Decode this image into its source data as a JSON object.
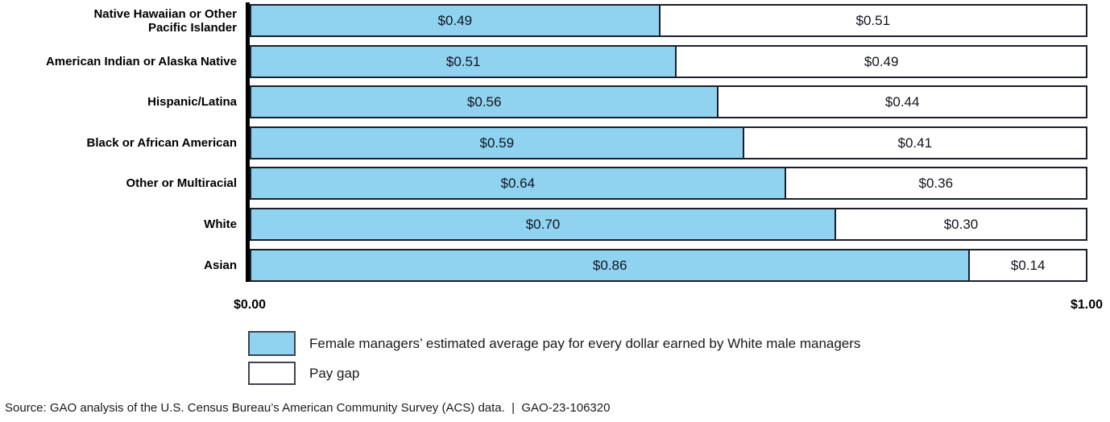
{
  "chart_data": {
    "type": "bar",
    "orientation": "horizontal",
    "stacked": true,
    "title": "",
    "xlabel": "",
    "ylabel": "",
    "xlim": [
      0,
      1
    ],
    "x_tick_labels": [
      "$0.00",
      "$1.00"
    ],
    "grid": false,
    "legend_position": "bottom-left",
    "categories": [
      "Native Hawaiian or Other Pacific Islander",
      "American Indian or Alaska Native",
      "Hispanic/Latina",
      "Black or African American",
      "Other or Multiracial",
      "White",
      "Asian"
    ],
    "category_display_lines": [
      [
        "Native Hawaiian or Other",
        "Pacific Islander"
      ],
      [
        "American Indian or Alaska Native"
      ],
      [
        "Hispanic/Latina"
      ],
      [
        "Black or African American"
      ],
      [
        "Other or Multiracial"
      ],
      [
        "White"
      ],
      [
        "Asian"
      ]
    ],
    "series": [
      {
        "name": "Female managers’ estimated average pay for every dollar earned by White male managers",
        "color": "#8fd3f0",
        "values": [
          0.49,
          0.51,
          0.56,
          0.59,
          0.64,
          0.7,
          0.86
        ],
        "labels": [
          "$0.49",
          "$0.51",
          "$0.56",
          "$0.59",
          "$0.64",
          "$0.70",
          "$0.86"
        ]
      },
      {
        "name": "Pay gap",
        "color": "#ffffff",
        "values": [
          0.51,
          0.49,
          0.44,
          0.41,
          0.36,
          0.3,
          0.14
        ],
        "labels": [
          "$0.51",
          "$0.49",
          "$0.44",
          "$0.41",
          "$0.36",
          "$0.30",
          "$0.14"
        ]
      }
    ]
  },
  "legend": {
    "items": [
      {
        "label": "Female managers’ estimated average pay for every dollar earned by White male managers",
        "swatch_color": "#8fd3f0"
      },
      {
        "label": "Pay gap",
        "swatch_color": "#ffffff"
      }
    ]
  },
  "footer": {
    "text": "Source: GAO analysis of the U.S. Census Bureau’s American Community Survey (ACS) data.  |  GAO-23-106320"
  },
  "colors": {
    "bar_fill": "#8fd3f0",
    "bar_border": "#1b1f2b",
    "axis_line": "#000000",
    "value_text": "#10131d",
    "label_text": "#000000"
  }
}
